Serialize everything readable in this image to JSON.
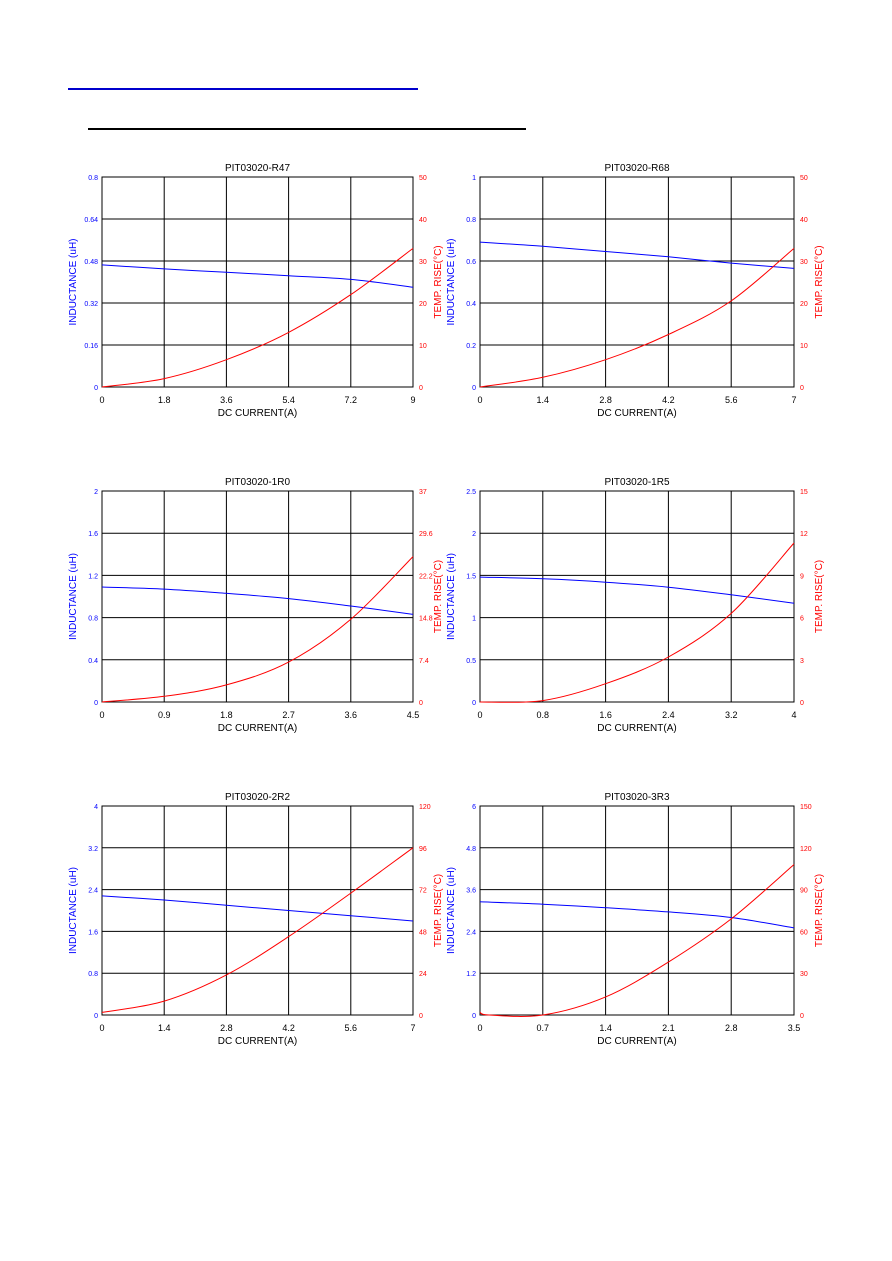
{
  "colors": {
    "inductance": "#0000ff",
    "temp_rise": "#ff0000",
    "grid": "#000000",
    "header_rule": "#0000cc"
  },
  "chart_data": [
    {
      "type": "line",
      "title": "PIT03020-R47",
      "xlabel": "DC CURRENT(A)",
      "ylabel_left": "INDUCTANCE (uH)",
      "ylabel_right": "TEMP. RISE(°C)",
      "x_ticks": [
        "0",
        "1.8",
        "3.6",
        "5.4",
        "7.2",
        "9"
      ],
      "y_left_ticks": [
        "0",
        "0.16",
        "0.32",
        "0.48",
        "0.64",
        "0.8"
      ],
      "y_right_ticks": [
        "0",
        "10",
        "20",
        "30",
        "40",
        "50"
      ],
      "xlim": [
        0,
        9
      ],
      "ylim_left": [
        0,
        0.8
      ],
      "ylim_right": [
        0,
        50
      ],
      "grid": true,
      "series": [
        {
          "name": "INDUCTANCE (uH)",
          "axis": "left",
          "x": [
            0,
            1.8,
            3.6,
            5.4,
            7.2,
            9
          ],
          "y": [
            0.465,
            0.45,
            0.437,
            0.424,
            0.41,
            0.38
          ]
        },
        {
          "name": "TEMP. RISE(°C)",
          "axis": "right",
          "x": [
            0,
            1.8,
            3.6,
            5.4,
            7.2,
            9
          ],
          "y": [
            0,
            2,
            6.5,
            13,
            22,
            33
          ]
        }
      ]
    },
    {
      "type": "line",
      "title": "PIT03020-R68",
      "xlabel": "DC CURRENT(A)",
      "ylabel_left": "INDUCTANCE (uH)",
      "ylabel_right": "TEMP. RISE(°C)",
      "x_ticks": [
        "0",
        "1.4",
        "2.8",
        "4.2",
        "5.6",
        "7"
      ],
      "y_left_ticks": [
        "0",
        "0.2",
        "0.4",
        "0.6",
        "0.8",
        "1"
      ],
      "y_right_ticks": [
        "0",
        "10",
        "20",
        "30",
        "40",
        "50"
      ],
      "xlim": [
        0,
        7
      ],
      "ylim_left": [
        0,
        1
      ],
      "ylim_right": [
        0,
        50
      ],
      "grid": true,
      "series": [
        {
          "name": "INDUCTANCE (uH)",
          "axis": "left",
          "x": [
            0,
            1.4,
            2.8,
            4.2,
            5.6,
            7
          ],
          "y": [
            0.69,
            0.67,
            0.645,
            0.62,
            0.59,
            0.565
          ]
        },
        {
          "name": "TEMP. RISE(°C)",
          "axis": "right",
          "x": [
            0,
            1.4,
            2.8,
            4.2,
            5.6,
            7
          ],
          "y": [
            0,
            2.3,
            6.5,
            12.5,
            20.5,
            33
          ]
        }
      ]
    },
    {
      "type": "line",
      "title": "PIT03020-1R0",
      "xlabel": "DC CURRENT(A)",
      "ylabel_left": "INDUCTANCE (uH)",
      "ylabel_right": "TEMP. RISE(°C)",
      "x_ticks": [
        "0",
        "0.9",
        "1.8",
        "2.7",
        "3.6",
        "4.5"
      ],
      "y_left_ticks": [
        "0",
        "0.4",
        "0.8",
        "1.2",
        "1.6",
        "2"
      ],
      "y_right_ticks": [
        "0",
        "7.4",
        "14.8",
        "22.2",
        "29.6",
        "37"
      ],
      "xlim": [
        0,
        4.5
      ],
      "ylim_left": [
        0,
        2
      ],
      "ylim_right": [
        0,
        37
      ],
      "grid": true,
      "series": [
        {
          "name": "INDUCTANCE (uH)",
          "axis": "left",
          "x": [
            0,
            0.9,
            1.8,
            2.7,
            3.6,
            4.5
          ],
          "y": [
            1.09,
            1.07,
            1.03,
            0.98,
            0.91,
            0.83
          ]
        },
        {
          "name": "TEMP. RISE(°C)",
          "axis": "right",
          "x": [
            0,
            0.9,
            1.8,
            2.7,
            3.6,
            4.5
          ],
          "y": [
            0,
            1,
            3,
            7,
            14.5,
            25.5
          ]
        }
      ]
    },
    {
      "type": "line",
      "title": "PIT03020-1R5",
      "xlabel": "DC CURRENT(A)",
      "ylabel_left": "INDUCTANCE (uH)",
      "ylabel_right": "TEMP. RISE(°C)",
      "x_ticks": [
        "0",
        "0.8",
        "1.6",
        "2.4",
        "3.2",
        "4"
      ],
      "y_left_ticks": [
        "0",
        "0.5",
        "1",
        "1.5",
        "2",
        "2.5"
      ],
      "y_right_ticks": [
        "0",
        "3",
        "6",
        "9",
        "12",
        "15"
      ],
      "xlim": [
        0,
        4
      ],
      "ylim_left": [
        0,
        2.5
      ],
      "ylim_right": [
        0,
        15
      ],
      "grid": true,
      "series": [
        {
          "name": "INDUCTANCE (uH)",
          "axis": "left",
          "x": [
            0,
            0.8,
            1.6,
            2.4,
            3.2,
            4
          ],
          "y": [
            1.48,
            1.46,
            1.42,
            1.36,
            1.27,
            1.17
          ]
        },
        {
          "name": "TEMP. RISE(°C)",
          "axis": "right",
          "x": [
            0,
            0.8,
            1.6,
            2.4,
            3.2,
            4
          ],
          "y": [
            0,
            0.1,
            1.3,
            3.2,
            6.3,
            11.3
          ]
        }
      ]
    },
    {
      "type": "line",
      "title": "PIT03020-2R2",
      "xlabel": "DC CURRENT(A)",
      "ylabel_left": "INDUCTANCE (uH)",
      "ylabel_right": "TEMP. RISE(°C)",
      "x_ticks": [
        "0",
        "1.4",
        "2.8",
        "4.2",
        "5.6",
        "7"
      ],
      "y_left_ticks": [
        "0",
        "0.8",
        "1.6",
        "2.4",
        "3.2",
        "4"
      ],
      "y_right_ticks": [
        "0",
        "24",
        "48",
        "72",
        "96",
        "120"
      ],
      "xlim": [
        0,
        7
      ],
      "ylim_left": [
        0,
        4
      ],
      "ylim_right": [
        0,
        120
      ],
      "grid": true,
      "series": [
        {
          "name": "INDUCTANCE (uH)",
          "axis": "left",
          "x": [
            0,
            1.4,
            2.8,
            4.2,
            5.6,
            7
          ],
          "y": [
            2.28,
            2.2,
            2.1,
            2.0,
            1.9,
            1.8
          ]
        },
        {
          "name": "TEMP. RISE(°C)",
          "axis": "right",
          "x": [
            0,
            1.4,
            2.8,
            4.2,
            5.6,
            7
          ],
          "y": [
            1.5,
            8,
            23,
            45,
            70,
            96
          ]
        }
      ]
    },
    {
      "type": "line",
      "title": "PIT03020-3R3",
      "xlabel": "DC CURRENT(A)",
      "ylabel_left": "INDUCTANCE (uH)",
      "ylabel_right": "TEMP. RISE(°C)",
      "x_ticks": [
        "0",
        "0.7",
        "1.4",
        "2.1",
        "2.8",
        "3.5"
      ],
      "y_left_ticks": [
        "0",
        "1.2",
        "2.4",
        "3.6",
        "4.8",
        "6"
      ],
      "y_right_ticks": [
        "0",
        "30",
        "60",
        "90",
        "120",
        "150"
      ],
      "xlim": [
        0,
        3.5
      ],
      "ylim_left": [
        0,
        6
      ],
      "ylim_right": [
        0,
        150
      ],
      "grid": true,
      "series": [
        {
          "name": "INDUCTANCE (uH)",
          "axis": "left",
          "x": [
            0,
            0.7,
            1.4,
            2.1,
            2.8,
            3.5
          ],
          "y": [
            3.25,
            3.18,
            3.08,
            2.96,
            2.8,
            2.5
          ]
        },
        {
          "name": "TEMP. RISE(°C)",
          "axis": "right",
          "x": [
            0,
            0.1,
            0.7,
            1.4,
            2.1,
            2.8,
            3.5
          ],
          "y": [
            2,
            0,
            0,
            13,
            38,
            69,
            108
          ]
        }
      ]
    }
  ]
}
